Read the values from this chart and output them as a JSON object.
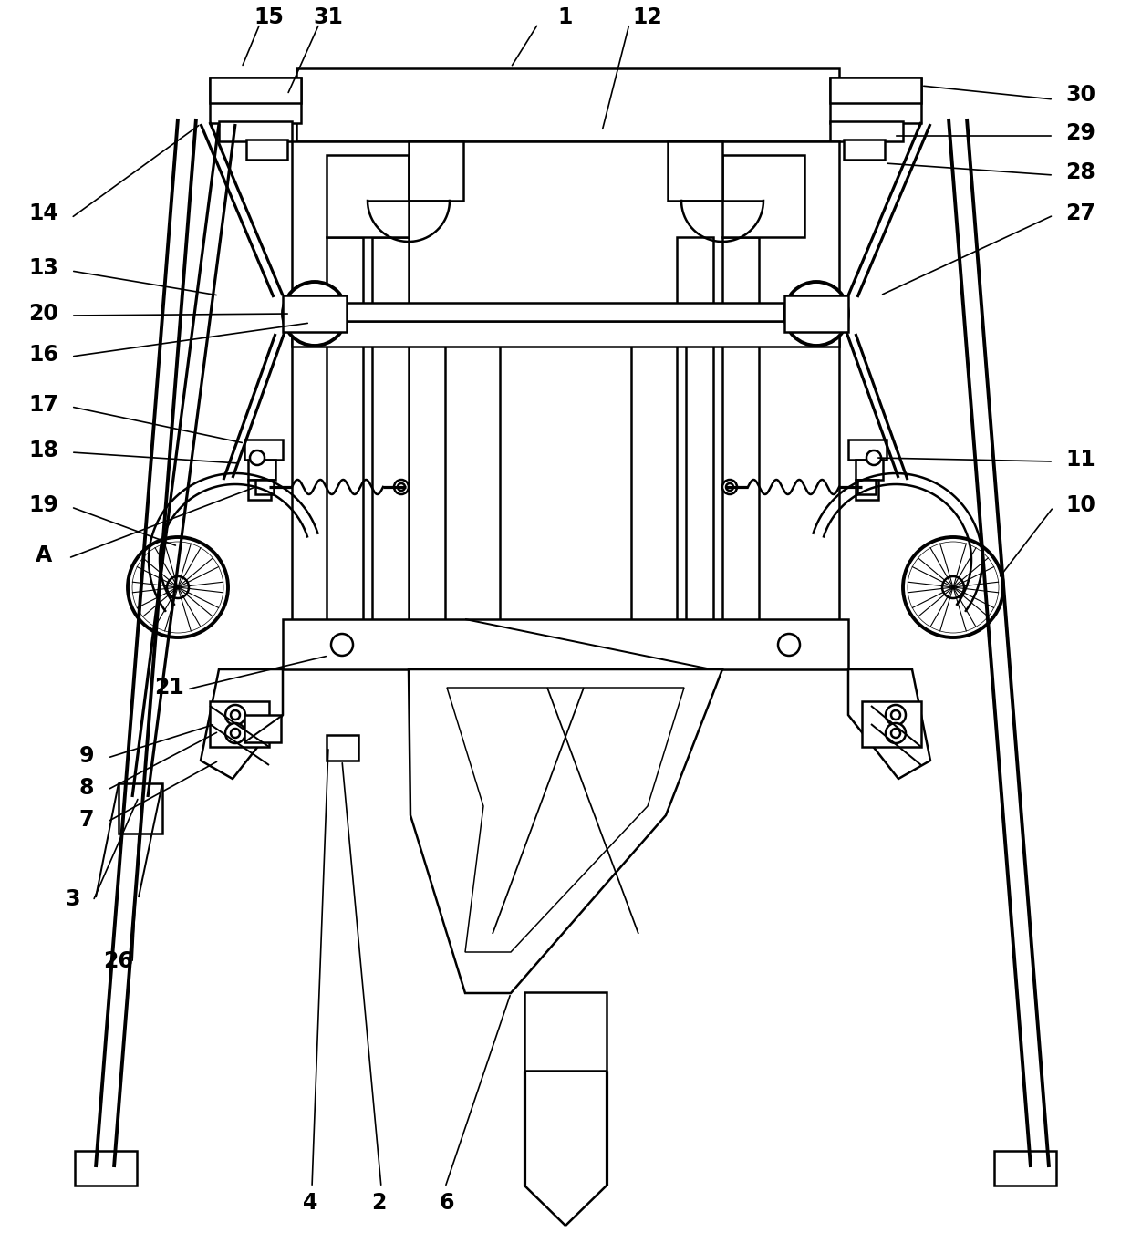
{
  "bg_color": "#ffffff",
  "line_color": "#000000",
  "lw": 1.8,
  "fig_width": 12.4,
  "fig_height": 13.74,
  "dpi": 100
}
